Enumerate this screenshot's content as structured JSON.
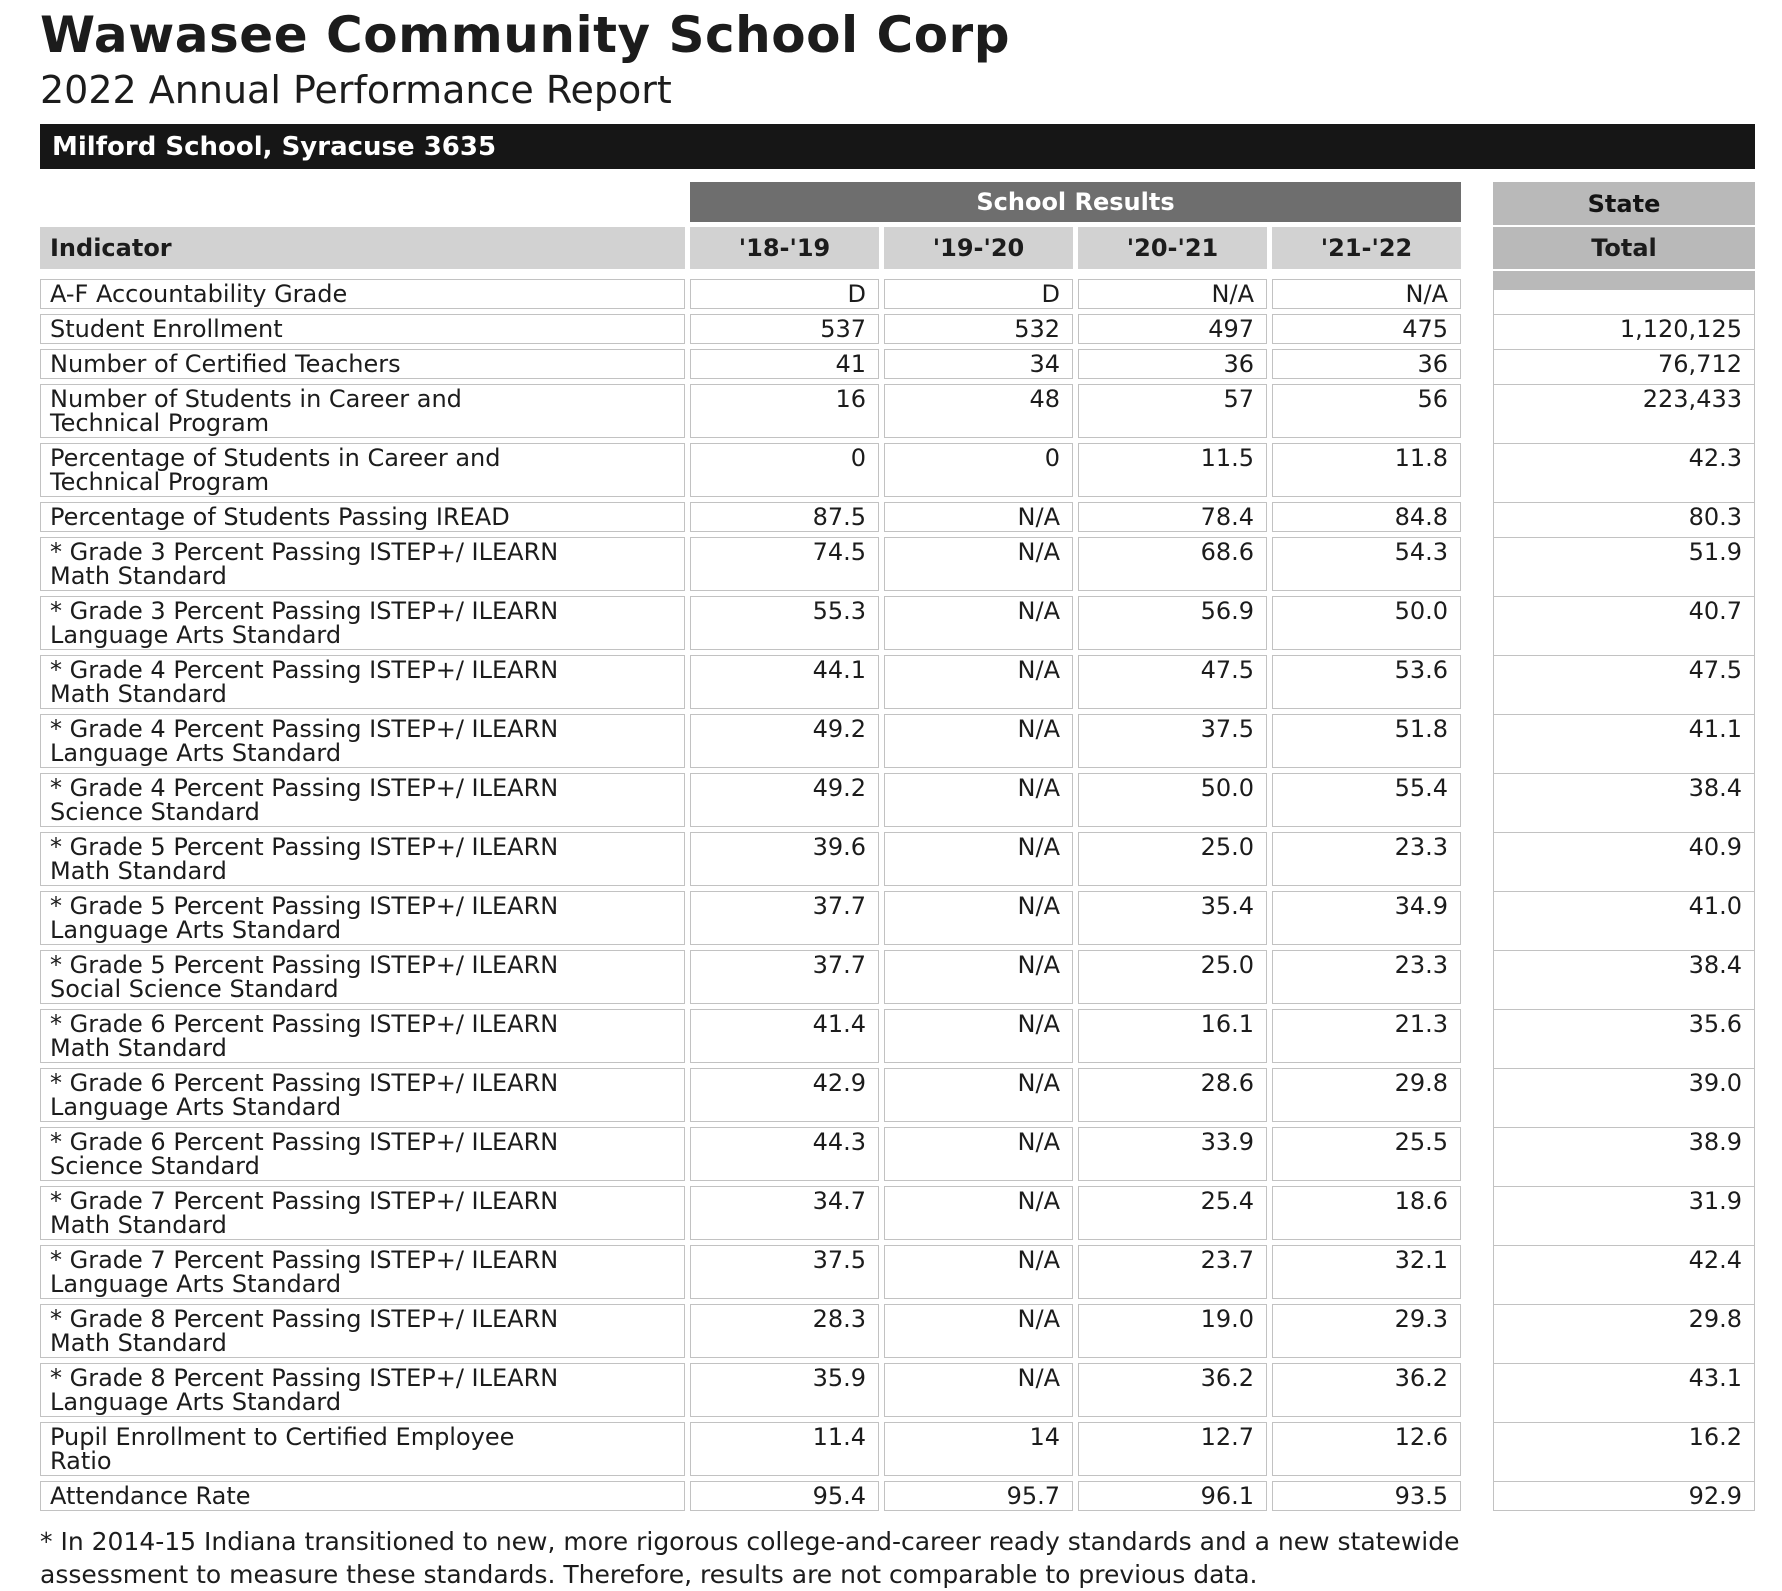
{
  "page": {
    "title": "Wawasee Community School Corp",
    "subtitle": "2022 Annual Performance Report",
    "banner": "Milford School, Syracuse 3635",
    "footnote": "* In 2014-15 Indiana transitioned to new, more rigorous college-and-career ready standards and a new statewide\nassessment to measure these standards.  Therefore, results are not comparable to previous data."
  },
  "table": {
    "group_headers": {
      "school_results": "School Results",
      "state": "State"
    },
    "indicator_header": "Indicator",
    "year_headers": [
      "'18-'19",
      "'19-'20",
      "'20-'21",
      "'21-'22"
    ],
    "state_total_header": "Total",
    "rows": [
      {
        "label": "A-F Accountability Grade",
        "values": [
          "D",
          "D",
          "N/A",
          "N/A"
        ],
        "state": ""
      },
      {
        "label": "Student Enrollment",
        "values": [
          "537",
          "532",
          "497",
          "475"
        ],
        "state": "1,120,125"
      },
      {
        "label": "Number of Certified Teachers",
        "values": [
          "41",
          "34",
          "36",
          "36"
        ],
        "state": "76,712"
      },
      {
        "label": "Number of Students in Career and\nTechnical Program",
        "values": [
          "16",
          "48",
          "57",
          "56"
        ],
        "state": "223,433"
      },
      {
        "label": "Percentage of Students in Career and\nTechnical Program",
        "values": [
          "0",
          "0",
          "11.5",
          "11.8"
        ],
        "state": "42.3"
      },
      {
        "label": "Percentage of Students Passing IREAD",
        "values": [
          "87.5",
          "N/A",
          "78.4",
          "84.8"
        ],
        "state": "80.3"
      },
      {
        "label": "* Grade 3 Percent Passing ISTEP+/ ILEARN\nMath Standard",
        "values": [
          "74.5",
          "N/A",
          "68.6",
          "54.3"
        ],
        "state": "51.9"
      },
      {
        "label": "* Grade 3 Percent Passing ISTEP+/ ILEARN\nLanguage Arts Standard",
        "values": [
          "55.3",
          "N/A",
          "56.9",
          "50.0"
        ],
        "state": "40.7"
      },
      {
        "label": "* Grade 4 Percent Passing ISTEP+/ ILEARN\nMath Standard",
        "values": [
          "44.1",
          "N/A",
          "47.5",
          "53.6"
        ],
        "state": "47.5"
      },
      {
        "label": "* Grade 4 Percent Passing ISTEP+/ ILEARN\nLanguage Arts Standard",
        "values": [
          "49.2",
          "N/A",
          "37.5",
          "51.8"
        ],
        "state": "41.1"
      },
      {
        "label": "* Grade 4 Percent Passing ISTEP+/ ILEARN\nScience Standard",
        "values": [
          "49.2",
          "N/A",
          "50.0",
          "55.4"
        ],
        "state": "38.4"
      },
      {
        "label": "* Grade 5 Percent Passing ISTEP+/ ILEARN\nMath Standard",
        "values": [
          "39.6",
          "N/A",
          "25.0",
          "23.3"
        ],
        "state": "40.9"
      },
      {
        "label": "* Grade 5 Percent Passing ISTEP+/ ILEARN\nLanguage Arts Standard",
        "values": [
          "37.7",
          "N/A",
          "35.4",
          "34.9"
        ],
        "state": "41.0"
      },
      {
        "label": "* Grade 5 Percent Passing ISTEP+/ ILEARN\nSocial Science Standard",
        "values": [
          "37.7",
          "N/A",
          "25.0",
          "23.3"
        ],
        "state": "38.4"
      },
      {
        "label": "* Grade 6 Percent Passing ISTEP+/ ILEARN\nMath Standard",
        "values": [
          "41.4",
          "N/A",
          "16.1",
          "21.3"
        ],
        "state": "35.6"
      },
      {
        "label": "* Grade 6 Percent Passing ISTEP+/ ILEARN\nLanguage Arts Standard",
        "values": [
          "42.9",
          "N/A",
          "28.6",
          "29.8"
        ],
        "state": "39.0"
      },
      {
        "label": "* Grade 6 Percent Passing ISTEP+/ ILEARN\nScience Standard",
        "values": [
          "44.3",
          "N/A",
          "33.9",
          "25.5"
        ],
        "state": "38.9"
      },
      {
        "label": "* Grade 7 Percent Passing ISTEP+/ ILEARN\nMath Standard",
        "values": [
          "34.7",
          "N/A",
          "25.4",
          "18.6"
        ],
        "state": "31.9"
      },
      {
        "label": "* Grade 7 Percent Passing ISTEP+/ ILEARN\nLanguage Arts Standard",
        "values": [
          "37.5",
          "N/A",
          "23.7",
          "32.1"
        ],
        "state": "42.4"
      },
      {
        "label": "* Grade 8 Percent Passing ISTEP+/ ILEARN\nMath Standard",
        "values": [
          "28.3",
          "N/A",
          "19.0",
          "29.3"
        ],
        "state": "29.8"
      },
      {
        "label": "* Grade 8 Percent Passing ISTEP+/ ILEARN\nLanguage Arts Standard",
        "values": [
          "35.9",
          "N/A",
          "36.2",
          "36.2"
        ],
        "state": "43.1"
      },
      {
        "label": "Pupil Enrollment to Certified Employee\nRatio",
        "values": [
          "11.4",
          "14",
          "12.7",
          "12.6"
        ],
        "state": "16.2"
      },
      {
        "label": "Attendance Rate",
        "values": [
          "95.4",
          "95.7",
          "96.1",
          "93.5"
        ],
        "state": "92.9"
      }
    ]
  },
  "colors": {
    "banner_bg": "#161616",
    "group_header_bg": "#6e6e6e",
    "column_header_bg": "#d2d2d2",
    "state_header_bg": "#b9b9b9",
    "cell_border": "#c2c2c2"
  }
}
